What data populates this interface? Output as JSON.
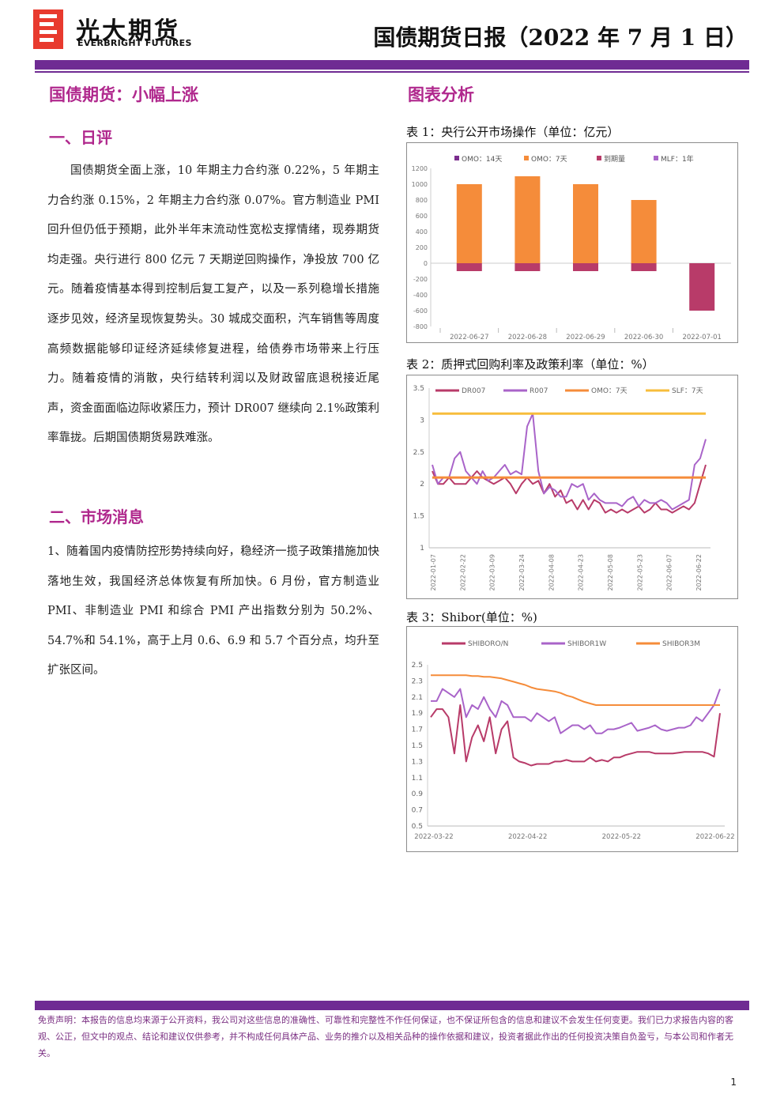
{
  "header": {
    "logo_cn": "光大期货",
    "logo_en": "EVERBRIGHT FUTURES",
    "doc_title": "国债期货日报（2022 年 7 月 1 日）"
  },
  "left": {
    "main_title": "国债期货：小幅上涨",
    "section1_title": "一、日评",
    "section1_text": "国债期货全面上涨，10 年期主力合约涨 0.22%，5 年期主力合约涨 0.15%，2 年期主力合约涨 0.07%。官方制造业 PMI 回升但仍低于预期，此外半年末流动性宽松支撑情绪，现券期货均走强。央行进行 800 亿元 7 天期逆回购操作，净投放 700 亿元。随着疫情基本得到控制后复工复产，以及一系列稳增长措施逐步见效，经济呈现恢复势头。30 城成交面积，汽车销售等周度高频数据能够印证经济延续修复进程，给债券市场带来上行压力。随着疫情的消散，央行结转利润以及财政留底退税接近尾声，资金面面临边际收紧压力，预计 DR007 继续向 2.1%政策利率靠拢。后期国债期货易跌难涨。",
    "section2_title": "二、市场消息",
    "section2_text": "1、随着国内疫情防控形势持续向好，稳经济一揽子政策措施加快落地生效，我国经济总体恢复有所加快。6 月份，官方制造业 PMI、非制造业 PMI 和综合 PMI 产出指数分别为 50.2%、54.7%和 54.1%，高于上月 0.6、6.9 和 5.7 个百分点，均升至扩张区间。"
  },
  "right": {
    "title": "图表分析",
    "chart1_title": "表 1：央行公开市场操作（单位：亿元）",
    "chart2_title": "表 2：质押式回购利率及政策利率（单位：%）",
    "chart3_title": "表 3：Shibor(单位：%)"
  },
  "colors": {
    "purple": "#6f2b93",
    "magenta": "#b0288d",
    "omo14": "#7b2d8e",
    "omo7": "#f58c3a",
    "maturity": "#b83b69",
    "mlf": "#a964c9",
    "slf": "#f7bd3c"
  },
  "chart_data": [
    {
      "type": "bar",
      "categories": [
        "2022-06-27",
        "2022-06-28",
        "2022-06-29",
        "2022-06-30",
        "2022-07-01"
      ],
      "series": [
        {
          "name": "OMO：14天",
          "values": [
            0,
            0,
            0,
            0,
            0
          ]
        },
        {
          "name": "OMO：7天",
          "values": [
            1000,
            1100,
            1000,
            800,
            0
          ]
        },
        {
          "name": "到期量",
          "values": [
            -100,
            -100,
            -100,
            -100,
            -600
          ]
        },
        {
          "name": "MLF：1年",
          "values": [
            0,
            0,
            0,
            0,
            0
          ]
        }
      ],
      "yticks": [
        1200,
        1000,
        800,
        600,
        400,
        200,
        0,
        -200,
        -400,
        -600,
        -800
      ],
      "ylim": [
        -800,
        1200
      ],
      "legend": "top"
    },
    {
      "type": "line",
      "x_ticks": [
        "2022-01-07",
        "2022-02-22",
        "2022-03-09",
        "2022-03-24",
        "2022-04-08",
        "2022-04-23",
        "2022-05-08",
        "2022-05-23",
        "2022-06-07",
        "2022-06-22"
      ],
      "yticks": [
        3.5,
        3,
        2.5,
        2,
        1.5,
        1
      ],
      "ylim": [
        1,
        3.5
      ],
      "series": [
        {
          "name": "DR007",
          "values": [
            2.2,
            2.0,
            2.0,
            2.1,
            2.0,
            2.0,
            2.0,
            2.1,
            2.2,
            2.1,
            2.05,
            2.0,
            2.05,
            2.1,
            2.0,
            1.85,
            2.0,
            2.1,
            2.0,
            2.05,
            1.85,
            2.0,
            1.8,
            1.9,
            1.7,
            1.75,
            1.6,
            1.75,
            1.6,
            1.75,
            1.7,
            1.55,
            1.6,
            1.55,
            1.6,
            1.55,
            1.6,
            1.65,
            1.55,
            1.6,
            1.7,
            1.6,
            1.6,
            1.55,
            1.6,
            1.65,
            1.6,
            1.7,
            2.0,
            2.3
          ]
        },
        {
          "name": "R007",
          "values": [
            2.3,
            2.0,
            2.1,
            2.1,
            2.4,
            2.5,
            2.2,
            2.1,
            2.0,
            2.2,
            2.05,
            2.1,
            2.2,
            2.3,
            2.15,
            2.2,
            2.15,
            2.9,
            3.1,
            2.2,
            1.85,
            1.95,
            1.9,
            1.8,
            1.8,
            2.0,
            1.95,
            2.0,
            1.75,
            1.85,
            1.75,
            1.7,
            1.7,
            1.7,
            1.65,
            1.75,
            1.8,
            1.65,
            1.75,
            1.7,
            1.7,
            1.75,
            1.7,
            1.6,
            1.65,
            1.7,
            1.75,
            2.3,
            2.4,
            2.7
          ]
        },
        {
          "name": "OMO：7天",
          "values": [
            2.1,
            2.1,
            2.1,
            2.1,
            2.1,
            2.1,
            2.1,
            2.1,
            2.1,
            2.1,
            2.1,
            2.1,
            2.1,
            2.1,
            2.1,
            2.1,
            2.1,
            2.1,
            2.1,
            2.1,
            2.1,
            2.1,
            2.1,
            2.1,
            2.1,
            2.1,
            2.1,
            2.1,
            2.1,
            2.1,
            2.1,
            2.1,
            2.1,
            2.1,
            2.1,
            2.1,
            2.1,
            2.1,
            2.1,
            2.1,
            2.1,
            2.1,
            2.1,
            2.1,
            2.1,
            2.1,
            2.1,
            2.1,
            2.1,
            2.1
          ]
        },
        {
          "name": "SLF：7天",
          "values": [
            3.1,
            3.1,
            3.1,
            3.1,
            3.1,
            3.1,
            3.1,
            3.1,
            3.1,
            3.1,
            3.1,
            3.1,
            3.1,
            3.1,
            3.1,
            3.1,
            3.1,
            3.1,
            3.1,
            3.1,
            3.1,
            3.1,
            3.1,
            3.1,
            3.1,
            3.1,
            3.1,
            3.1,
            3.1,
            3.1,
            3.1,
            3.1,
            3.1,
            3.1,
            3.1,
            3.1,
            3.1,
            3.1,
            3.1,
            3.1,
            3.1,
            3.1,
            3.1,
            3.1,
            3.1,
            3.1,
            3.1,
            3.1,
            3.1,
            3.1
          ]
        }
      ],
      "legend": "top"
    },
    {
      "type": "line",
      "x_ticks": [
        "2022-03-22",
        "2022-04-22",
        "2022-05-22",
        "2022-06-22"
      ],
      "yticks": [
        2.5,
        2.3,
        2.1,
        1.9,
        1.7,
        1.5,
        1.3,
        1.1,
        0.9,
        0.7,
        0.5
      ],
      "ylim": [
        0.5,
        2.5
      ],
      "series": [
        {
          "name": "SHIBORO/N",
          "values": [
            1.85,
            1.95,
            1.95,
            1.85,
            1.4,
            2.0,
            1.3,
            1.6,
            1.75,
            1.55,
            1.85,
            1.4,
            1.7,
            1.8,
            1.35,
            1.3,
            1.28,
            1.25,
            1.27,
            1.27,
            1.27,
            1.3,
            1.3,
            1.32,
            1.3,
            1.3,
            1.3,
            1.35,
            1.3,
            1.32,
            1.3,
            1.35,
            1.35,
            1.38,
            1.4,
            1.42,
            1.42,
            1.42,
            1.4,
            1.4,
            1.4,
            1.4,
            1.41,
            1.42,
            1.42,
            1.42,
            1.42,
            1.4,
            1.36,
            1.9
          ]
        },
        {
          "name": "SHIBOR1W",
          "values": [
            2.05,
            2.05,
            2.2,
            2.15,
            2.1,
            2.2,
            1.85,
            2.0,
            1.95,
            2.1,
            1.95,
            1.85,
            2.05,
            2.0,
            1.85,
            1.85,
            1.85,
            1.8,
            1.9,
            1.85,
            1.8,
            1.85,
            1.65,
            1.7,
            1.75,
            1.75,
            1.7,
            1.75,
            1.65,
            1.65,
            1.7,
            1.7,
            1.72,
            1.75,
            1.78,
            1.68,
            1.7,
            1.72,
            1.75,
            1.7,
            1.68,
            1.7,
            1.72,
            1.72,
            1.75,
            1.85,
            1.8,
            1.9,
            2.0,
            2.2
          ]
        },
        {
          "name": "SHIBOR3M",
          "values": [
            2.37,
            2.37,
            2.37,
            2.37,
            2.37,
            2.37,
            2.37,
            2.36,
            2.36,
            2.35,
            2.35,
            2.34,
            2.33,
            2.31,
            2.29,
            2.27,
            2.25,
            2.22,
            2.2,
            2.19,
            2.18,
            2.17,
            2.15,
            2.12,
            2.1,
            2.07,
            2.04,
            2.02,
            2.0,
            2.0,
            2.0,
            2.0,
            2.0,
            2.0,
            2.0,
            2.0,
            2.0,
            2.0,
            2.0,
            2.0,
            2.0,
            2.0,
            2.0,
            2.0,
            2.0,
            2.0,
            2.0,
            2.0,
            2.0,
            2.0
          ]
        }
      ],
      "legend": "top"
    }
  ],
  "footer": {
    "disclaimer": "免责声明：本报告的信息均来源于公开资料，我公司对这些信息的准确性、可靠性和完整性不作任何保证，也不保证所包含的信息和建议不会发生任何变更。我们已力求报告内容的客观、公正，但文中的观点、结论和建议仅供参考，并不构成任何具体产品、业务的推介以及相关品种的操作依据和建议，投资者据此作出的任何投资决策自负盈亏，与本公司和作者无关。",
    "page_number": "1"
  }
}
